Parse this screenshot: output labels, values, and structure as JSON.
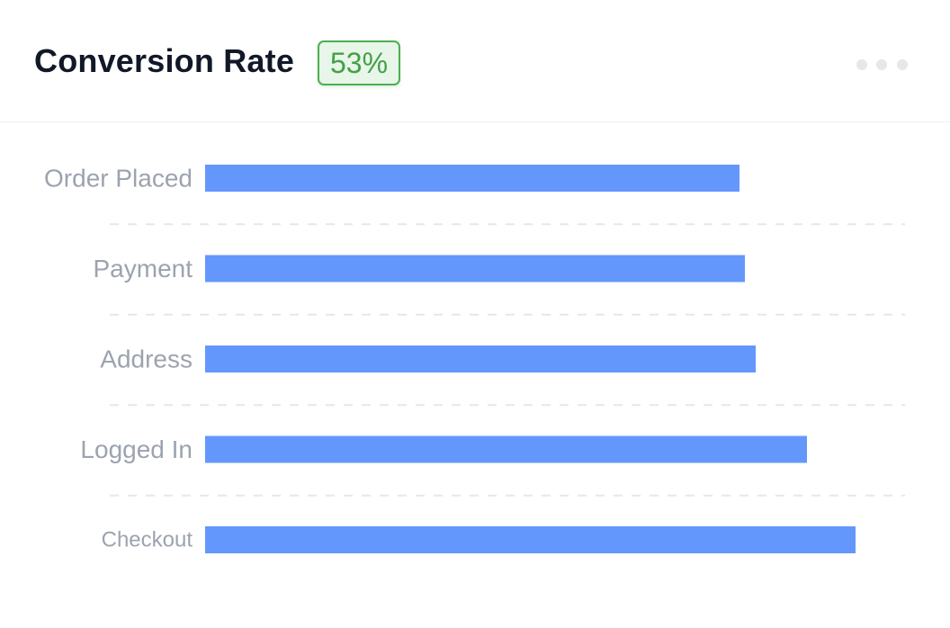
{
  "header": {
    "title": "Conversion Rate",
    "badge": "53%",
    "menu_icon": "more-horizontal-icon"
  },
  "colors": {
    "bar": "#6497fb",
    "badge_text": "#43a047",
    "badge_border": "#4caf50",
    "badge_bg": "#e8f5e9",
    "label": "#9ca3af",
    "title": "#111827"
  },
  "chart_data": {
    "type": "bar",
    "orientation": "horizontal",
    "categories": [
      "Order Placed",
      "Payment",
      "Address",
      "Logged In",
      "Checkout"
    ],
    "values": [
      594,
      600,
      612,
      669,
      723
    ],
    "xlim": [
      0,
      780
    ],
    "grid": "dashed horizontal separators",
    "legend": "none"
  }
}
